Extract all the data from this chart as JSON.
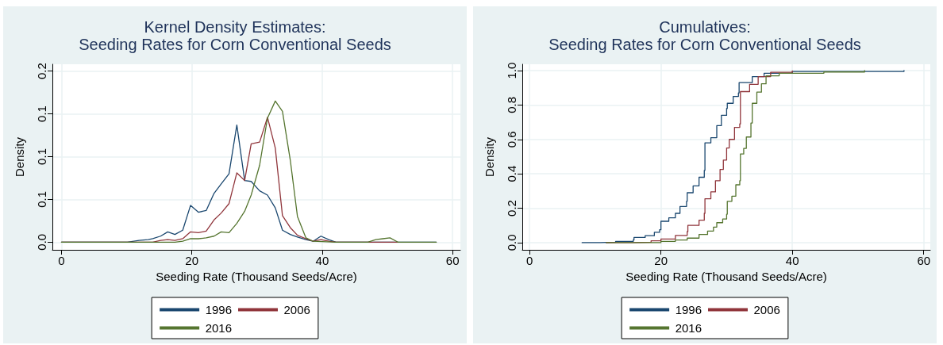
{
  "chart_data": [
    {
      "type": "line",
      "title": "Kernel Density Estimates:\nSeeding Rates for Corn Conventional Seeds",
      "xlabel": "Seeding Rate (Thousand Seeds/Acre)",
      "ylabel": "Density",
      "xlim": [
        -1.4,
        61.2
      ],
      "xticks": [
        0,
        20,
        40,
        60
      ],
      "ylim": [
        -0.009,
        0.208
      ],
      "yticks": [
        {
          "value": 0,
          "label": "0.0"
        },
        {
          "value": 0.05,
          "label": "0.1"
        },
        {
          "value": 0.1,
          "label": "0.1"
        },
        {
          "value": 0.15,
          "label": "0.1"
        },
        {
          "value": 0.2,
          "label": "0.2"
        }
      ],
      "grid": true,
      "legend": "bottom",
      "marker": "none",
      "line_style": "solid",
      "series": [
        {
          "name": "1996",
          "color": "#1a476f",
          "x": [
            0,
            9.2,
            10.1,
            11.9,
            13.3,
            14,
            15.2,
            16.3,
            17.4,
            18.6,
            19.8,
            21.0,
            22.2,
            23.4,
            24.5,
            25.7,
            26.9,
            28.1,
            29.1,
            30.4,
            31.6,
            32.8,
            33.9,
            35.1,
            36.2,
            37.5,
            38.6,
            39.8,
            41.0,
            42.1,
            57.5
          ],
          "values": [
            0,
            0,
            0.0,
            0.002,
            0.003,
            0.004,
            0.007,
            0.012,
            0.009,
            0.014,
            0.043,
            0.035,
            0.037,
            0.057,
            0.068,
            0.08,
            0.137,
            0.072,
            0.071,
            0.06,
            0.055,
            0.04,
            0.014,
            0.009,
            0.006,
            0.003,
            0.001,
            0.007,
            0.003,
            0,
            0
          ]
        },
        {
          "name": "2006",
          "color": "#90353b",
          "x": [
            0,
            14,
            15.2,
            16.3,
            17.4,
            18.6,
            19.8,
            21.0,
            22.2,
            23.4,
            24.5,
            25.7,
            26.9,
            28.1,
            29.1,
            30.4,
            31.6,
            32.8,
            33.9,
            35.1,
            36.2,
            37.5,
            38.6,
            39.8,
            41.0,
            42.1,
            51.6
          ],
          "values": [
            0,
            0.0,
            0.002,
            0.003,
            0.002,
            0.004,
            0.012,
            0.011,
            0.013,
            0.026,
            0.034,
            0.045,
            0.081,
            0.072,
            0.115,
            0.117,
            0.146,
            0.11,
            0.031,
            0.017,
            0.008,
            0.004,
            0.001,
            0.003,
            0.001,
            0,
            0
          ]
        },
        {
          "name": "2016",
          "color": "#55752f",
          "x": [
            0,
            17.4,
            18.6,
            19.8,
            21.0,
            22.2,
            23.4,
            24.5,
            25.7,
            26.9,
            28.1,
            29.1,
            30.4,
            31.6,
            32.8,
            33.9,
            35.1,
            36.2,
            37.5,
            38.6,
            42.1,
            47,
            48.2,
            49.3,
            50.4,
            51.6,
            57.5
          ],
          "values": [
            0,
            0,
            0.001,
            0.004,
            0.004,
            0.005,
            0.007,
            0.012,
            0.011,
            0.022,
            0.036,
            0.055,
            0.09,
            0.145,
            0.165,
            0.153,
            0.096,
            0.03,
            0.005,
            0.001,
            0,
            0.0,
            0.003,
            0.004,
            0.005,
            0,
            0
          ]
        }
      ]
    },
    {
      "type": "step",
      "title": "Cumulatives:\nSeeding Rates for Corn Conventional Seeds",
      "xlabel": "Seeding Rate (Thousand Seeds/Acre)",
      "ylabel": "Density",
      "xlim": [
        -1.1,
        61
      ],
      "xticks": [
        0,
        20,
        40,
        60
      ],
      "ylim": [
        -0.042,
        1.037
      ],
      "yticks": [
        {
          "value": 0,
          "label": "0.0"
        },
        {
          "value": 0.2,
          "label": "0.2"
        },
        {
          "value": 0.4,
          "label": "0.4"
        },
        {
          "value": 0.6,
          "label": "0.6"
        },
        {
          "value": 0.8,
          "label": "0.8"
        },
        {
          "value": 1,
          "label": "1.0"
        }
      ],
      "grid": true,
      "legend": "bottom",
      "marker": "none",
      "line_style": "solid",
      "series": [
        {
          "name": "1996",
          "color": "#1a476f",
          "x": [
            8.0,
            10.8,
            13.1,
            15.8,
            15.9,
            17.6,
            19.0,
            19.8,
            20,
            21.2,
            22.2,
            22.9,
            23.9,
            24,
            24.9,
            25.8,
            26.6,
            26.7,
            27.6,
            28.5,
            29.2,
            30,
            30.1,
            31,
            31.8,
            31.9,
            33.9,
            35.7,
            40,
            57
          ],
          "values": [
            0,
            0.002,
            0.007,
            0.016,
            0.03,
            0.04,
            0.06,
            0.075,
            0.124,
            0.144,
            0.17,
            0.21,
            0.24,
            0.29,
            0.33,
            0.38,
            0.42,
            0.58,
            0.61,
            0.68,
            0.74,
            0.78,
            0.81,
            0.85,
            0.87,
            0.93,
            0.965,
            0.985,
            0.995,
            1.0
          ]
        },
        {
          "name": "2006",
          "color": "#90353b",
          "x": [
            11.7,
            15.8,
            18.5,
            20,
            22.2,
            24,
            24.1,
            25.8,
            26.6,
            26.7,
            27.6,
            28.3,
            29,
            29.5,
            30,
            30.4,
            31.2,
            32,
            32.1,
            33.5,
            34.8,
            36.7,
            40
          ],
          "values": [
            0,
            0.002,
            0.01,
            0.021,
            0.042,
            0.064,
            0.1,
            0.13,
            0.17,
            0.255,
            0.295,
            0.36,
            0.425,
            0.48,
            0.55,
            0.6,
            0.67,
            0.69,
            0.878,
            0.92,
            0.965,
            0.99,
            0.998
          ]
        },
        {
          "name": "2016",
          "color": "#55752f",
          "x": [
            11.7,
            17.6,
            20,
            22.2,
            24,
            25.8,
            27.1,
            28,
            28.5,
            29.4,
            30,
            30.1,
            30.8,
            31.4,
            32,
            32.1,
            32.6,
            33,
            33.7,
            33.9,
            34.6,
            35.3,
            36,
            38,
            44.8,
            51
          ],
          "values": [
            0,
            0,
            0.007,
            0.015,
            0.026,
            0.047,
            0.067,
            0.09,
            0.116,
            0.137,
            0.165,
            0.24,
            0.27,
            0.336,
            0.36,
            0.515,
            0.548,
            0.614,
            0.695,
            0.81,
            0.875,
            0.923,
            0.97,
            0.985,
            0.992,
            1.0
          ]
        }
      ]
    }
  ]
}
